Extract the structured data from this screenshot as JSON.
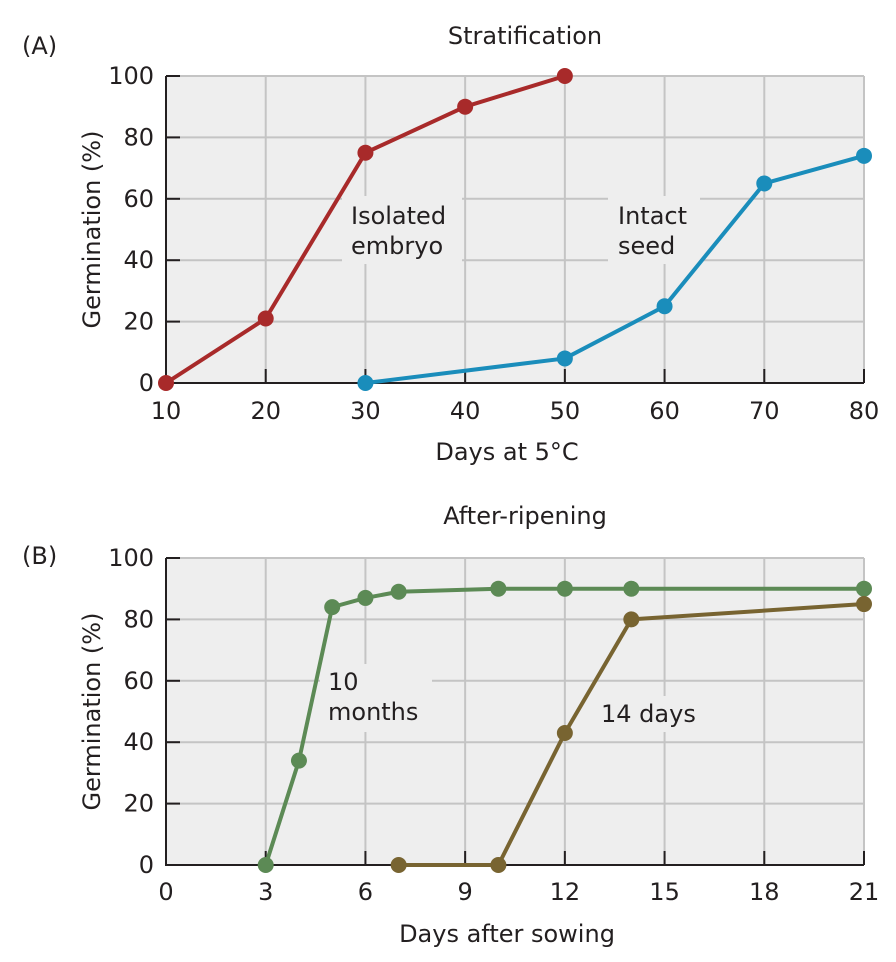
{
  "chart_data": [
    {
      "type": "line",
      "panel": "(A)",
      "title": "Stratification",
      "xlabel": "Days at 5°C",
      "ylabel": "Germination (%)",
      "xlim": [
        10,
        80
      ],
      "ylim": [
        0,
        100
      ],
      "xticks": [
        10,
        20,
        30,
        40,
        50,
        60,
        70,
        80
      ],
      "yticks": [
        0,
        20,
        40,
        60,
        80,
        100
      ],
      "grid": true,
      "series": [
        {
          "name": "Isolated embryo",
          "label_lines": [
            "Isolated",
            "embryo"
          ],
          "color": "#a82a2a",
          "x": [
            10,
            20,
            30,
            40,
            50
          ],
          "y": [
            0,
            21,
            75,
            90,
            100
          ]
        },
        {
          "name": "Intact seed",
          "label_lines": [
            "Intact",
            "seed"
          ],
          "color": "#1a8dbb",
          "x": [
            30,
            50,
            60,
            70,
            80
          ],
          "y": [
            0,
            8,
            25,
            65,
            74
          ]
        }
      ]
    },
    {
      "type": "line",
      "panel": "(B)",
      "title": "After-ripening",
      "xlabel": "Days after sowing",
      "ylabel": "Germination (%)",
      "xlim": [
        0,
        21
      ],
      "ylim": [
        0,
        100
      ],
      "xticks": [
        0,
        3,
        6,
        9,
        12,
        15,
        18,
        21
      ],
      "yticks": [
        0,
        20,
        40,
        60,
        80,
        100
      ],
      "grid": true,
      "series": [
        {
          "name": "10 months",
          "label_lines": [
            "10",
            "months"
          ],
          "color": "#5c8a55",
          "x": [
            3,
            4,
            5,
            6,
            7,
            10,
            12,
            14,
            21
          ],
          "y": [
            0,
            34,
            84,
            87,
            89,
            90,
            90,
            90,
            90
          ]
        },
        {
          "name": "14 days",
          "label_lines": [
            "14 days"
          ],
          "color": "#786431",
          "x": [
            7,
            10,
            12,
            14,
            21
          ],
          "y": [
            0,
            0,
            43,
            80,
            85
          ]
        }
      ]
    }
  ]
}
